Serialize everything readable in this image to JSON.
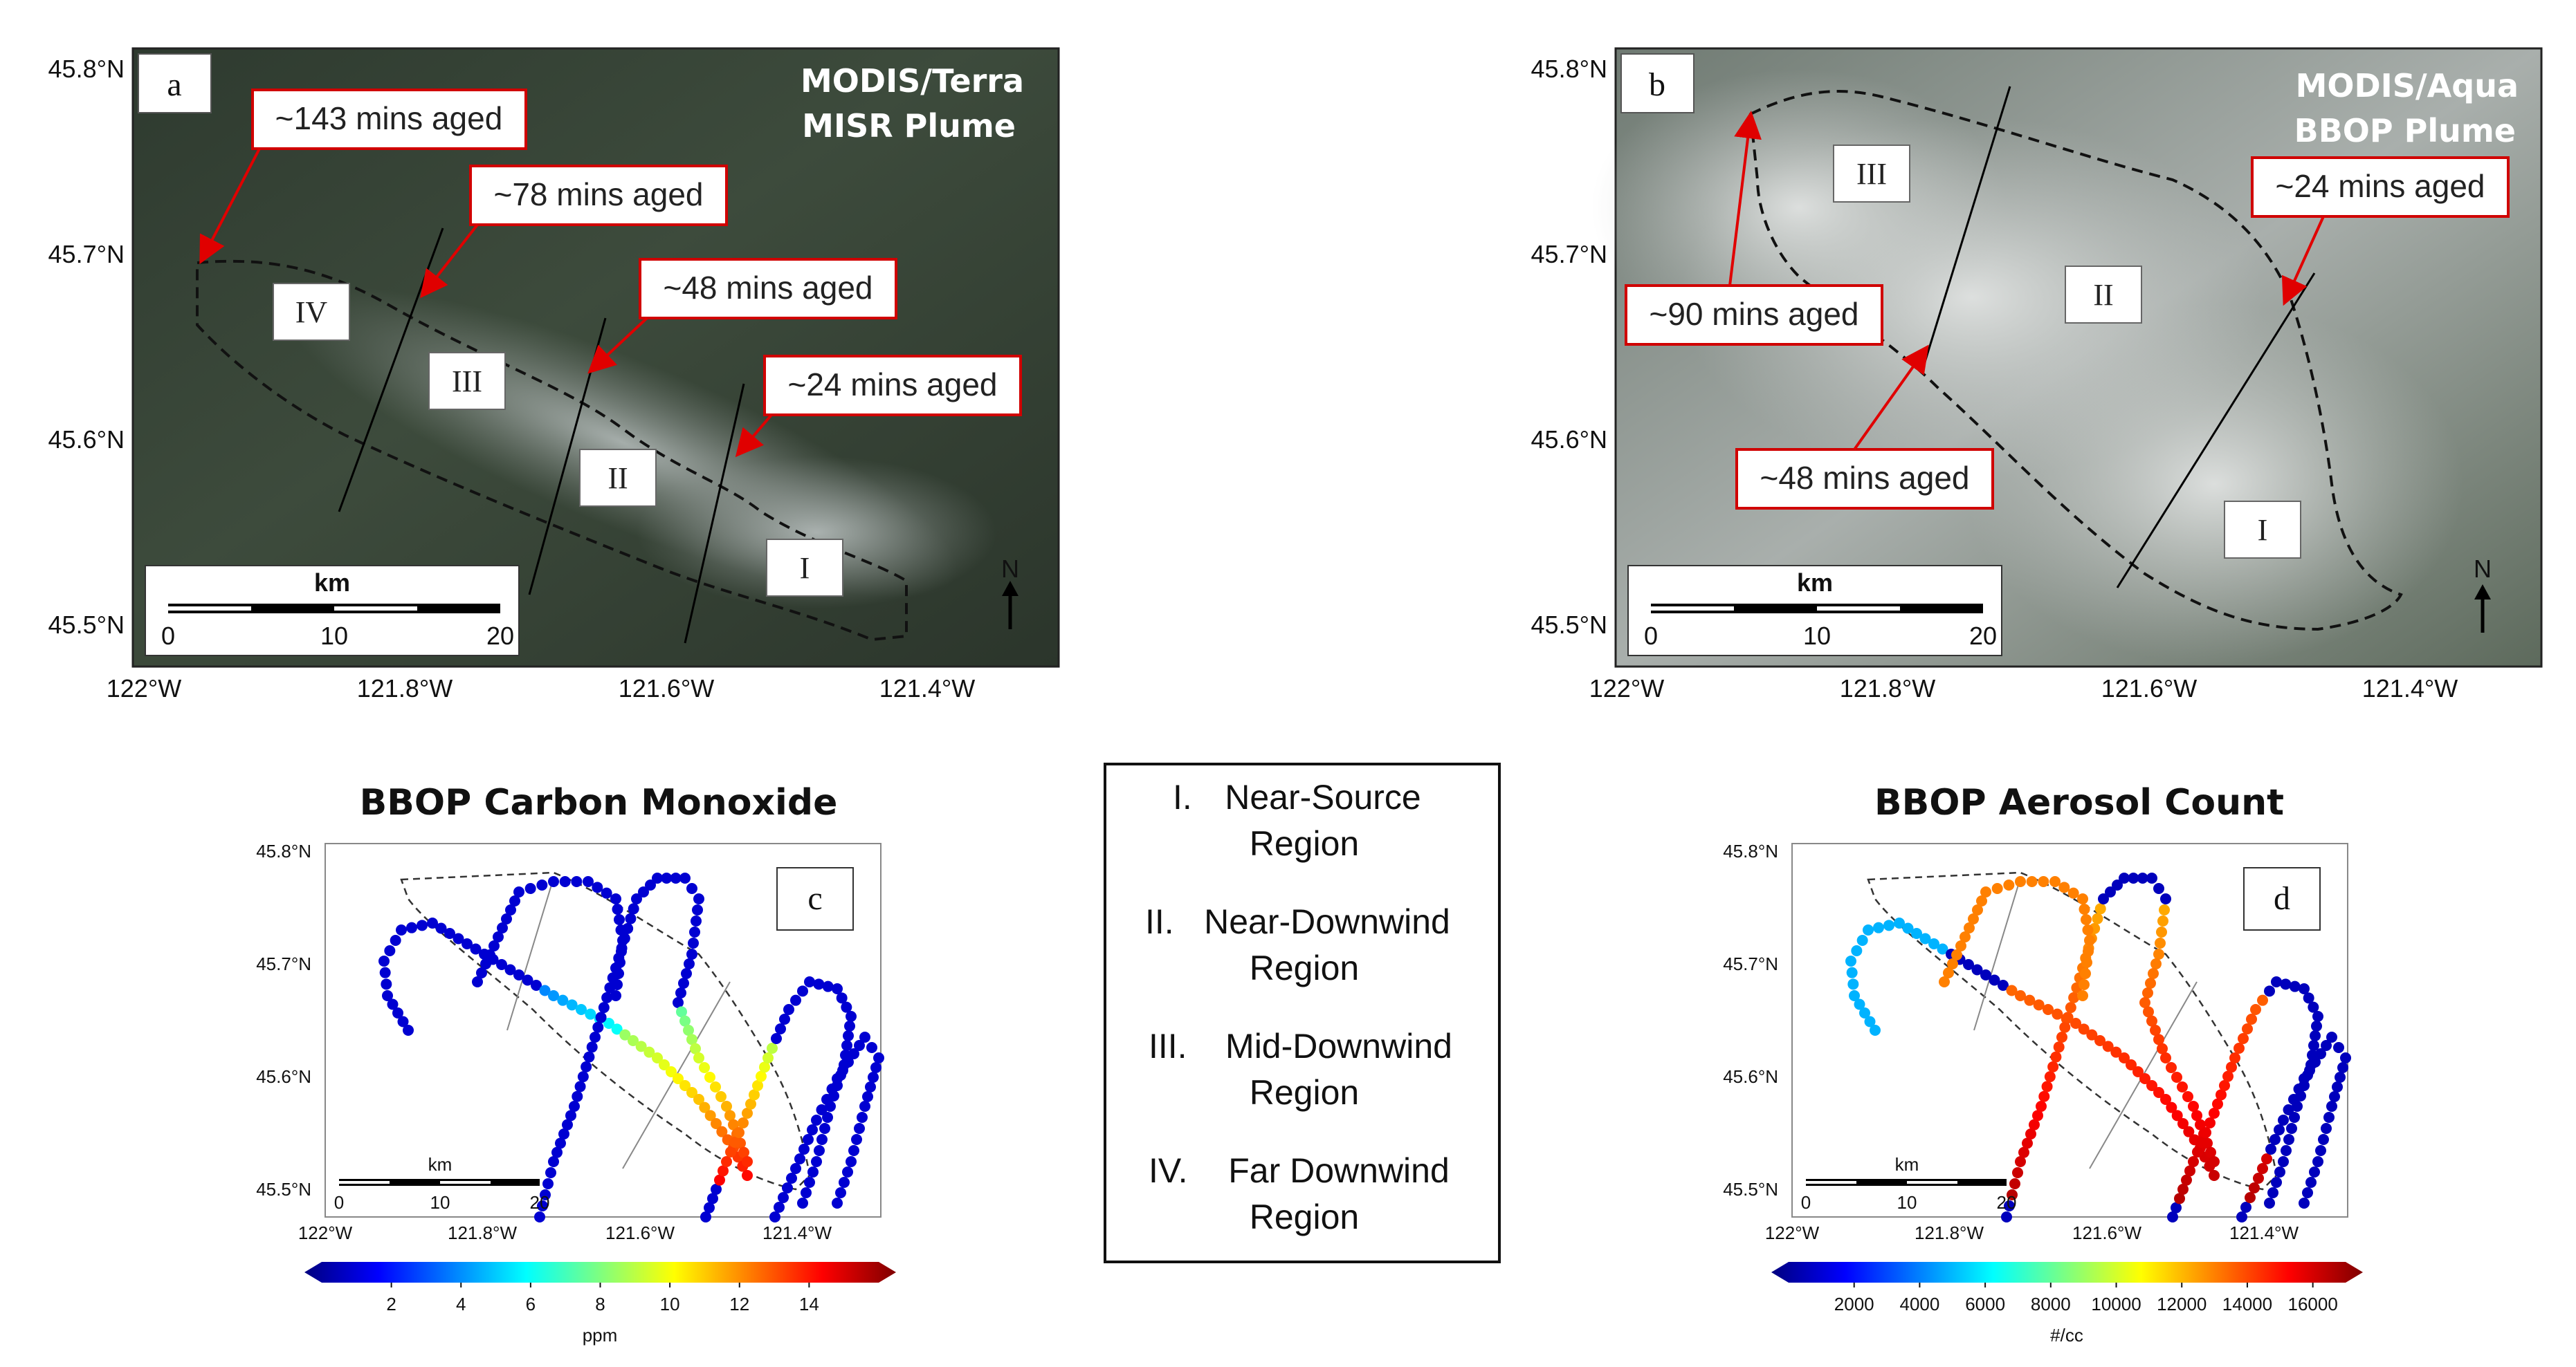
{
  "chart_data": [
    {
      "type": "map",
      "panel": "a",
      "title_lines": [
        "MODIS/Terra",
        "MISR Plume"
      ],
      "regions": [
        "IV",
        "III",
        "II",
        "I"
      ],
      "callouts": [
        "~143 mins aged",
        "~78 mins aged",
        "~48 mins aged",
        "~24 mins aged"
      ],
      "x_ticks": [
        "122°W",
        "121.8°W",
        "121.6°W",
        "121.4°W"
      ],
      "y_ticks": [
        "45.8°N",
        "45.7°N",
        "45.6°N",
        "45.5°N"
      ],
      "scale_bar": {
        "unit": "km",
        "ticks": [
          "0",
          "10",
          "20"
        ]
      },
      "north_label": "N"
    },
    {
      "type": "map",
      "panel": "b",
      "title_lines": [
        "MODIS/Aqua",
        "BBOP Plume"
      ],
      "regions": [
        "III",
        "II",
        "I"
      ],
      "callouts": [
        "~24 mins aged",
        "~90 mins aged",
        "~48 mins aged"
      ],
      "x_ticks": [
        "122°W",
        "121.8°W",
        "121.6°W",
        "121.4°W"
      ],
      "y_ticks": [
        "45.8°N",
        "45.7°N",
        "45.6°N",
        "45.5°N"
      ],
      "scale_bar": {
        "unit": "km",
        "ticks": [
          "0",
          "10",
          "20"
        ]
      },
      "north_label": "N"
    },
    {
      "type": "scatter",
      "panel": "c",
      "title": "BBOP Carbon Monoxide",
      "x_ticks": [
        "122°W",
        "121.8°W",
        "121.6°W",
        "121.4°W"
      ],
      "y_ticks": [
        "45.8°N",
        "45.7°N",
        "45.6°N",
        "45.5°N"
      ],
      "scale_bar": {
        "unit": "km",
        "ticks": [
          "0",
          "10",
          "20"
        ]
      },
      "colorbar": {
        "ticks": [
          "2",
          "4",
          "6",
          "8",
          "10",
          "12",
          "14"
        ],
        "label": "ppm",
        "range": [
          0,
          16
        ]
      }
    },
    {
      "type": "scatter",
      "panel": "d",
      "title": "BBOP Aerosol Count",
      "x_ticks": [
        "122°W",
        "121.8°W",
        "121.6°W",
        "121.4°W"
      ],
      "y_ticks": [
        "45.8°N",
        "45.7°N",
        "45.6°N",
        "45.5°N"
      ],
      "scale_bar": {
        "unit": "km",
        "ticks": [
          "0",
          "10",
          "20"
        ]
      },
      "colorbar": {
        "ticks": [
          "2000",
          "4000",
          "6000",
          "8000",
          "10000",
          "12000",
          "14000",
          "16000"
        ],
        "label": "#/cc",
        "range": [
          0,
          17000
        ]
      }
    }
  ],
  "legend": [
    {
      "numeral": "I.",
      "line1": "Near-Source",
      "line2": "Region"
    },
    {
      "numeral": "II.",
      "line1": "Near-Downwind",
      "line2": "Region"
    },
    {
      "numeral": "III.",
      "line1": "Mid-Downwind",
      "line2": "Region"
    },
    {
      "numeral": "IV.",
      "line1": "Far Downwind",
      "line2": "Region"
    }
  ],
  "colors": {
    "callout_border": "#d00000",
    "arrow": "#e00000",
    "satellite_a": "#3a4a3a",
    "satellite_b": "#8a918a"
  }
}
